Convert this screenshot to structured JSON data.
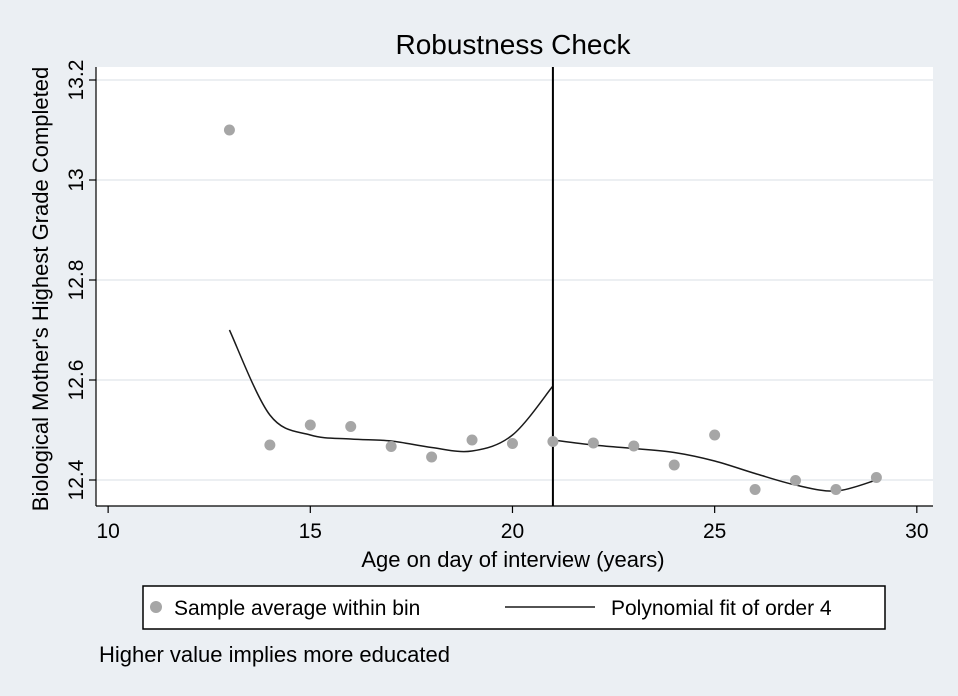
{
  "chart_data": {
    "type": "scatter",
    "title": "Robustness Check",
    "xlabel": "Age on day of interview (years)",
    "ylabel": "Biological Mother's Highest Grade Completed",
    "xlim": [
      9.7,
      30.4
    ],
    "ylim": [
      12.348,
      13.226
    ],
    "xticks": [
      10,
      15,
      20,
      25,
      30
    ],
    "yticks": [
      12.4,
      12.6,
      12.8,
      13,
      13.2
    ],
    "ytick_labels": [
      "12.4",
      "12.6",
      "12.8",
      "13",
      "13.2"
    ],
    "grid": true,
    "cutoff_x": 21,
    "series": [
      {
        "name": "Sample average within bin",
        "kind": "scatter",
        "color": "#a6a6a6",
        "x": [
          13,
          14,
          15,
          16,
          17,
          18,
          19,
          20,
          21,
          22,
          23,
          24,
          25,
          26,
          27,
          28,
          29
        ],
        "y": [
          13.1,
          12.47,
          12.51,
          12.507,
          12.467,
          12.446,
          12.48,
          12.473,
          12.477,
          12.474,
          12.468,
          12.43,
          12.49,
          12.381,
          12.399,
          12.381,
          12.405
        ]
      },
      {
        "name": "Polynomial fit of order 4",
        "kind": "line",
        "color": "#1a1a1a",
        "segments": [
          {
            "x": [
              13,
              14,
              15,
              16,
              17,
              18,
              19,
              20,
              21
            ],
            "y": [
              12.7,
              12.53,
              12.49,
              12.482,
              12.478,
              12.465,
              12.458,
              12.49,
              12.588
            ]
          },
          {
            "x": [
              21,
              22,
              23,
              24,
              25,
              26,
              27,
              28,
              29
            ],
            "y": [
              12.48,
              12.47,
              12.463,
              12.455,
              12.438,
              12.413,
              12.39,
              12.378,
              12.4
            ]
          }
        ]
      }
    ],
    "legend_position": "bottom",
    "note": "Higher value implies more educated"
  }
}
